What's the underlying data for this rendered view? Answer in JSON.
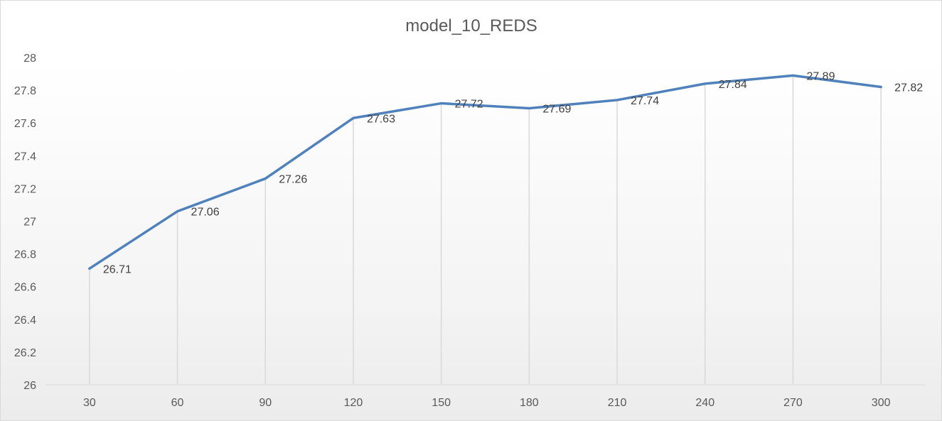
{
  "chart_data": {
    "type": "line",
    "title": "model_10_REDS",
    "xlabel": "",
    "ylabel": "",
    "x": [
      30,
      60,
      90,
      120,
      150,
      180,
      210,
      240,
      270,
      300
    ],
    "x_tick_labels": [
      "30",
      "60",
      "90",
      "120",
      "150",
      "180",
      "210",
      "240",
      "270",
      "300"
    ],
    "series": [
      {
        "values": [
          26.71,
          27.06,
          27.26,
          27.63,
          27.72,
          27.69,
          27.74,
          27.84,
          27.89,
          27.82
        ],
        "data_labels": [
          "26.71",
          "27.06",
          "27.26",
          "27.63",
          "27.72",
          "27.69",
          "27.74",
          "27.84",
          "27.89",
          "27.82"
        ],
        "color": "#4f81bd"
      }
    ],
    "ylim": [
      26,
      28
    ],
    "y_tick_labels": [
      "26",
      "26.2",
      "26.4",
      "26.6",
      "26.8",
      "27",
      "27.2",
      "27.4",
      "27.6",
      "27.8",
      "28"
    ],
    "drop_lines": true,
    "legend": "none"
  }
}
